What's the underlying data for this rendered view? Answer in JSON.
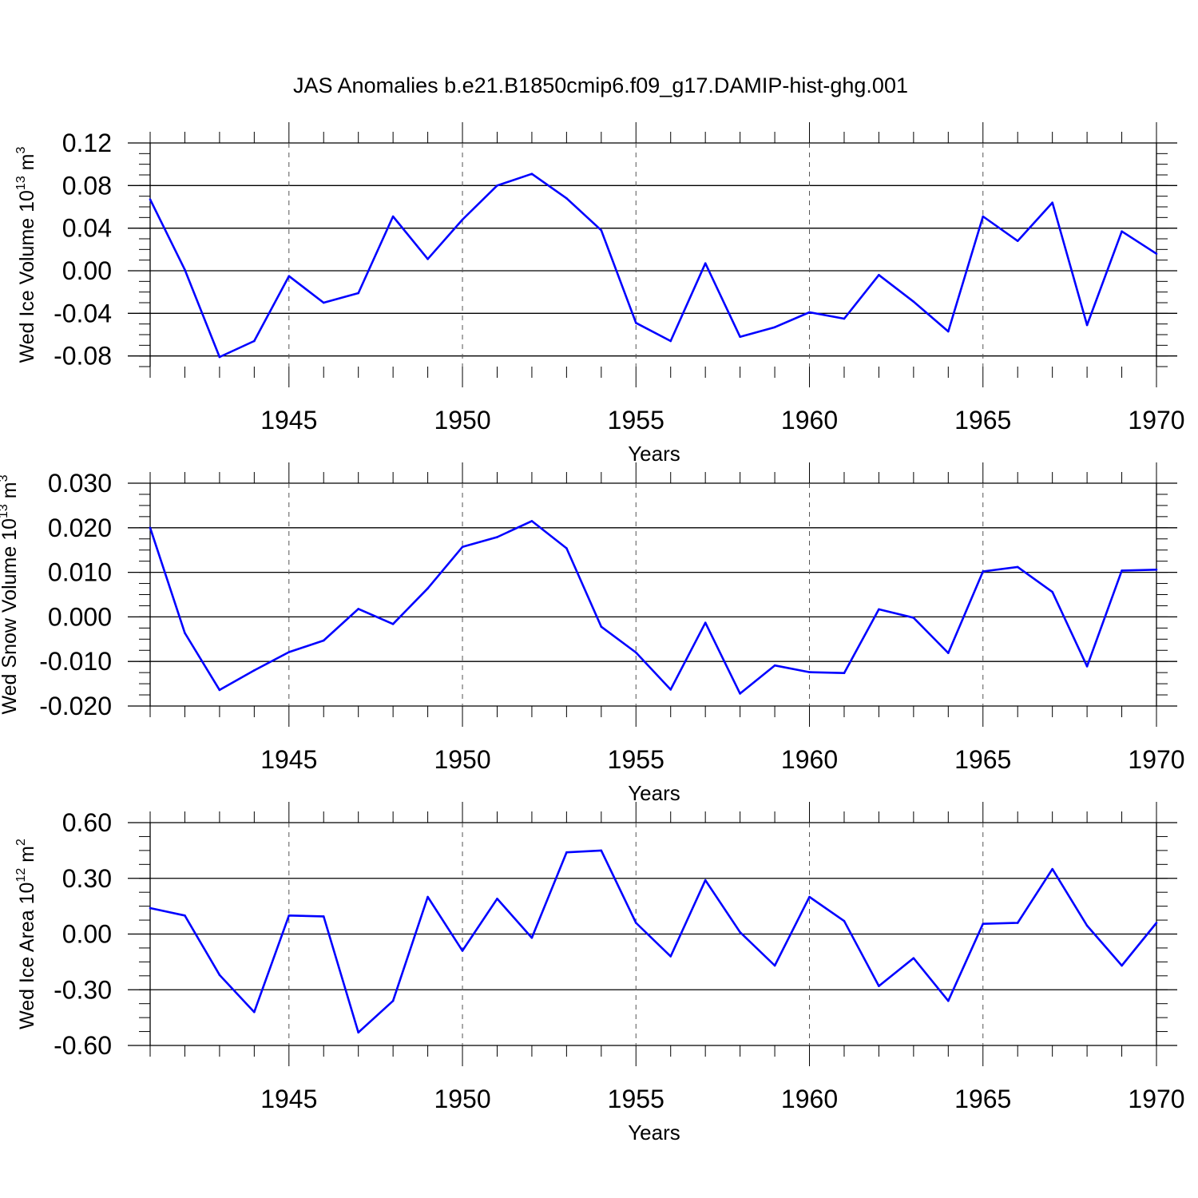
{
  "title": "JAS Anomalies b.e21.B1850cmip6.f09_g17.DAMIP-hist-ghg.001",
  "colors": {
    "line": "#0000ff",
    "axis": "#000000",
    "grid": "#555555"
  },
  "chart_data": [
    {
      "type": "line",
      "ylabel": "Wed Ice Volume 10",
      "ylabel_exp": "13",
      "ylabel_unit": " m",
      "ylabel_unit_exp": "3",
      "xlabel": "Years",
      "xlim": [
        1941,
        1970
      ],
      "ylim": [
        -0.09,
        0.12
      ],
      "yticks": [
        0.12,
        0.08,
        0.04,
        0.0,
        -0.04,
        -0.08
      ],
      "ytick_labels": [
        "0.12",
        "0.08",
        "0.04",
        "0.00",
        "-0.04",
        "-0.08"
      ],
      "xticks": [
        1945,
        1950,
        1955,
        1960,
        1965,
        1970
      ],
      "xtick_labels": [
        "1945",
        "1950",
        "1955",
        "1960",
        "1965",
        "1970"
      ],
      "grid": "vertical dashed at labeled years",
      "x": [
        1941,
        1942,
        1943,
        1944,
        1945,
        1946,
        1947,
        1948,
        1949,
        1950,
        1951,
        1952,
        1953,
        1954,
        1955,
        1956,
        1957,
        1958,
        1959,
        1960,
        1961,
        1962,
        1963,
        1964,
        1965,
        1966,
        1967,
        1968,
        1969,
        1970
      ],
      "values": [
        0.067,
        0.001,
        -0.081,
        -0.066,
        -0.005,
        -0.03,
        -0.021,
        0.051,
        0.011,
        0.048,
        0.08,
        0.091,
        0.068,
        0.038,
        -0.049,
        -0.066,
        0.007,
        -0.062,
        -0.053,
        -0.039,
        -0.045,
        -0.004,
        -0.029,
        -0.057,
        0.051,
        0.028,
        0.064,
        -0.051,
        0.037,
        0.016
      ]
    },
    {
      "type": "line",
      "ylabel": "Wed Snow Volume 10",
      "ylabel_exp": "13",
      "ylabel_unit": " m",
      "ylabel_unit_exp": "3",
      "xlabel": "Years",
      "xlim": [
        1941,
        1970
      ],
      "ylim": [
        -0.02,
        0.03
      ],
      "yticks": [
        0.03,
        0.02,
        0.01,
        0.0,
        -0.01,
        -0.02
      ],
      "ytick_labels": [
        "0.030",
        "0.020",
        "0.010",
        "0.000",
        "-0.010",
        "-0.020"
      ],
      "xticks": [
        1945,
        1950,
        1955,
        1960,
        1965,
        1970
      ],
      "xtick_labels": [
        "1945",
        "1950",
        "1955",
        "1960",
        "1965",
        "1970"
      ],
      "grid": "vertical dashed at labeled years",
      "x": [
        1941,
        1942,
        1943,
        1944,
        1945,
        1946,
        1947,
        1948,
        1949,
        1950,
        1951,
        1952,
        1953,
        1954,
        1955,
        1956,
        1957,
        1958,
        1959,
        1960,
        1961,
        1962,
        1963,
        1964,
        1965,
        1966,
        1967,
        1968,
        1969,
        1970
      ],
      "values": [
        0.02,
        -0.0036,
        -0.0164,
        -0.012,
        -0.0079,
        -0.0053,
        0.0018,
        -0.0016,
        0.0064,
        0.0157,
        0.0179,
        0.0215,
        0.0154,
        -0.0022,
        -0.008,
        -0.0163,
        -0.0013,
        -0.0172,
        -0.0109,
        -0.0124,
        -0.0126,
        0.0017,
        -0.0002,
        -0.0081,
        0.0102,
        0.0112,
        0.0056,
        -0.0111,
        0.0104,
        0.0106
      ]
    },
    {
      "type": "line",
      "ylabel": "Wed Ice Area 10",
      "ylabel_exp": "12",
      "ylabel_unit": " m",
      "ylabel_unit_exp": "2",
      "xlabel": "Years",
      "xlim": [
        1941,
        1970
      ],
      "ylim": [
        -0.6,
        0.6
      ],
      "yticks": [
        0.6,
        0.3,
        0.0,
        -0.3,
        -0.6
      ],
      "ytick_labels": [
        "0.60",
        "0.30",
        "0.00",
        "-0.30",
        "-0.60"
      ],
      "xticks": [
        1945,
        1950,
        1955,
        1960,
        1965,
        1970
      ],
      "xtick_labels": [
        "1945",
        "1950",
        "1955",
        "1960",
        "1965",
        "1970"
      ],
      "grid": "vertical dashed at labeled years",
      "x": [
        1941,
        1942,
        1943,
        1944,
        1945,
        1946,
        1947,
        1948,
        1949,
        1950,
        1951,
        1952,
        1953,
        1954,
        1955,
        1956,
        1957,
        1958,
        1959,
        1960,
        1961,
        1962,
        1963,
        1964,
        1965,
        1966,
        1967,
        1968,
        1969,
        1970
      ],
      "values": [
        0.14,
        0.1,
        -0.22,
        -0.42,
        0.1,
        0.095,
        -0.53,
        -0.36,
        0.2,
        -0.09,
        0.19,
        -0.02,
        0.44,
        0.45,
        0.06,
        -0.12,
        0.29,
        0.01,
        -0.17,
        0.2,
        0.07,
        -0.28,
        -0.13,
        -0.36,
        0.055,
        0.06,
        0.35,
        0.045,
        -0.17,
        0.06
      ]
    }
  ]
}
